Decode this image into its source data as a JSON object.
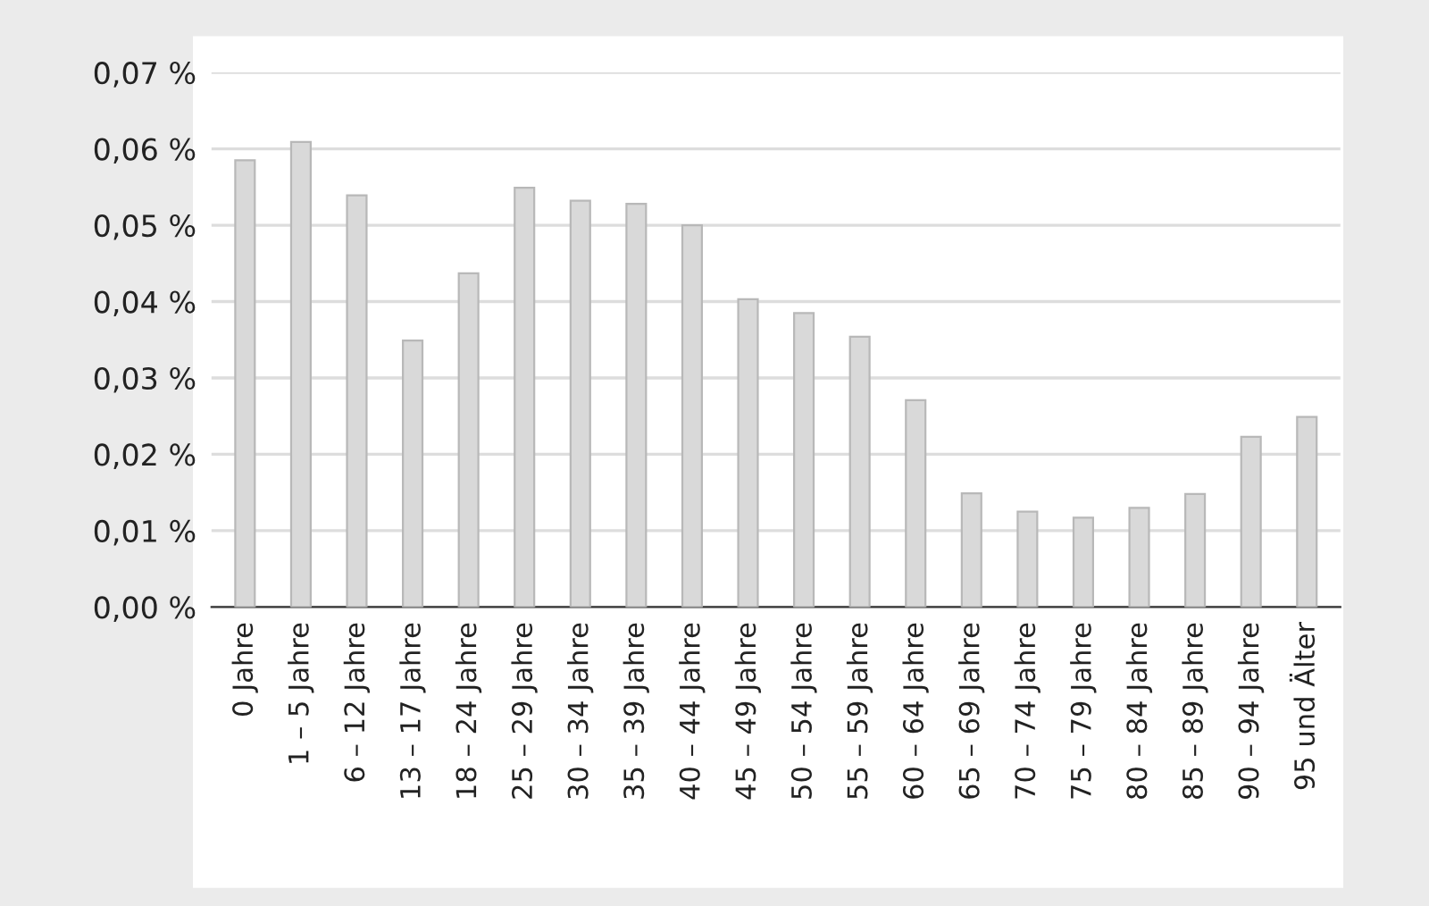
{
  "chart_data": {
    "type": "bar",
    "categories": [
      "0 Jahre",
      "1 – 5 Jahre",
      "6 – 12 Jahre",
      "13 – 17 Jahre",
      "18 – 24 Jahre",
      "25 – 29 Jahre",
      "30 – 34 Jahre",
      "35 – 39 Jahre",
      "40 – 44 Jahre",
      "45 – 49 Jahre",
      "50 – 54 Jahre",
      "55 – 59 Jahre",
      "60 – 64 Jahre",
      "65 – 69 Jahre",
      "70 – 74 Jahre",
      "75 – 79 Jahre",
      "80 – 84 Jahre",
      "85 – 89 Jahre",
      "90 – 94 Jahre",
      "95 und Älter"
    ],
    "values": [
      0.0585,
      0.0609,
      0.0539,
      0.0349,
      0.0437,
      0.0549,
      0.0532,
      0.0528,
      0.05,
      0.0403,
      0.0385,
      0.0354,
      0.0271,
      0.0149,
      0.0125,
      0.0117,
      0.013,
      0.0148,
      0.0223,
      0.0249
    ],
    "color": "#d9d9d9",
    "ylim": [
      0,
      0.07
    ],
    "yticks": [
      {
        "value": 0,
        "label": "0,00 %"
      },
      {
        "value": 0.01,
        "label": "0,01 %"
      },
      {
        "value": 0.02,
        "label": "0,02 %"
      },
      {
        "value": 0.03,
        "label": "0,03 %"
      },
      {
        "value": 0.04,
        "label": "0,04 %"
      },
      {
        "value": 0.05,
        "label": "0,05 %"
      },
      {
        "value": 0.06,
        "label": "0,06 %"
      },
      {
        "value": 0.07,
        "label": "0,07 %"
      }
    ],
    "grid": "y",
    "legend": false
  }
}
